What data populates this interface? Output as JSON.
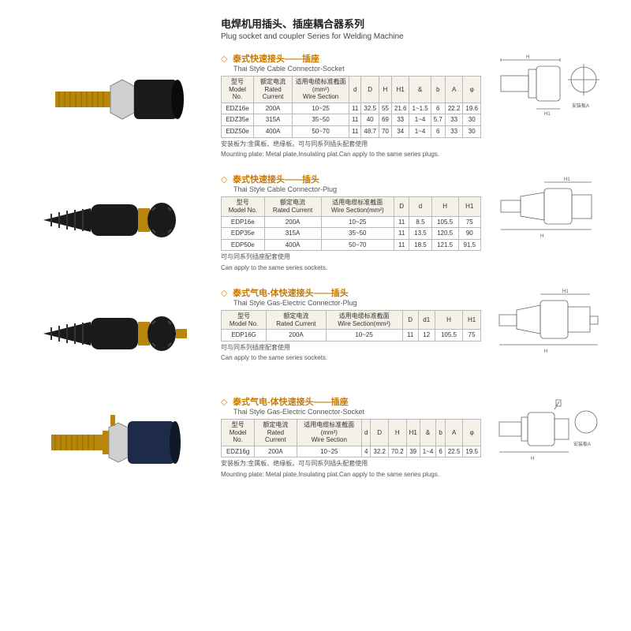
{
  "header": {
    "title_cn": "电焊机用插头、插座耦合器系列",
    "title_en": "Plug socket and coupler Series for Welding Machine"
  },
  "colors": {
    "accent": "#c97a00",
    "bullet": "#d88a00",
    "border": "#bbbbbb",
    "header_bg": "#f5f0e8",
    "text": "#333333",
    "brass": "#b8860b",
    "black": "#1a1a1a",
    "navy": "#1e2a4a",
    "steel": "#c8c8c8"
  },
  "sections": [
    {
      "id": "socket1",
      "title_cn": "泰式快速接头——插座",
      "title_en": "Thai Style Cable Connector-Socket",
      "columns": [
        {
          "cn": "型号",
          "en": "Model No."
        },
        {
          "cn": "额定电流",
          "en": "Rated Current"
        },
        {
          "cn": "适用电缆标准截面(mm²)",
          "en": "Wire Section"
        },
        {
          "en": "d"
        },
        {
          "en": "D"
        },
        {
          "en": "H"
        },
        {
          "en": "H1"
        },
        {
          "en": "&"
        },
        {
          "en": "b"
        },
        {
          "en": "A"
        },
        {
          "en": "φ"
        }
      ],
      "rows": [
        [
          "EDZ16e",
          "200A",
          "10~25",
          "11",
          "32.5",
          "55",
          "21.6",
          "1~1.5",
          "6",
          "22.2",
          "19.6"
        ],
        [
          "EDZ35e",
          "315A",
          "35~50",
          "11",
          "40",
          "69",
          "33",
          "1~4",
          "5.7",
          "33",
          "30"
        ],
        [
          "EDZ50e",
          "400A",
          "50~70",
          "11",
          "48.7",
          "70",
          "34",
          "1~4",
          "6",
          "33",
          "30"
        ]
      ],
      "note_cn": "安装板为:金属板、绝缘板。可与同系列插头配套使用",
      "note_en": "Mounting plate: Metal plate,Insulating plat.Can apply to the same series plugs."
    },
    {
      "id": "plug1",
      "title_cn": "泰式快速接头——插头",
      "title_en": "Thai Style Cable Connector-Plug",
      "columns": [
        {
          "cn": "型号",
          "en": "Model No."
        },
        {
          "cn": "额定电流",
          "en": "Rated Current"
        },
        {
          "cn": "适用电缆标准截面",
          "en": "Wire Section(mm²)"
        },
        {
          "en": "D"
        },
        {
          "en": "d"
        },
        {
          "en": "H"
        },
        {
          "en": "H1"
        }
      ],
      "rows": [
        [
          "EDP16e",
          "200A",
          "10~25",
          "11",
          "8.5",
          "105.5",
          "75"
        ],
        [
          "EDP35e",
          "315A",
          "35~50",
          "11",
          "13.5",
          "120.5",
          "90"
        ],
        [
          "EDP50e",
          "400A",
          "50~70",
          "11",
          "18.5",
          "121.5",
          "91.5"
        ]
      ],
      "note_cn": "可与同系列插座配套使用",
      "note_en": "Can apply to the same series sockets."
    },
    {
      "id": "plug2",
      "title_cn": "泰式气电-体快速接头——插头",
      "title_en": "Thai Style Gas-Electric Connector-Plug",
      "columns": [
        {
          "cn": "型号",
          "en": "Model No."
        },
        {
          "cn": "额定电流",
          "en": "Rated Current"
        },
        {
          "cn": "适用电缆标准截面",
          "en": "Wire Section(mm²)"
        },
        {
          "en": "D"
        },
        {
          "en": "d1"
        },
        {
          "en": "H"
        },
        {
          "en": "H1"
        }
      ],
      "rows": [
        [
          "EDP16G",
          "200A",
          "10~25",
          "11",
          "12",
          "105.5",
          "75"
        ]
      ],
      "note_cn": "可与同系列插座配套使用",
      "note_en": "Can apply to the same series sockets."
    },
    {
      "id": "socket2",
      "title_cn": "泰式气电-体快速接头——插座",
      "title_en": "Thai Style Gas-Electric Connector-Socket",
      "columns": [
        {
          "cn": "型号",
          "en": "Model No."
        },
        {
          "cn": "额定电流",
          "en": "Rated Current"
        },
        {
          "cn": "适用电缆标准截面(mm²)",
          "en": "Wire Section"
        },
        {
          "en": "d"
        },
        {
          "en": "D"
        },
        {
          "en": "H"
        },
        {
          "en": "H1"
        },
        {
          "en": "&"
        },
        {
          "en": "b"
        },
        {
          "en": "A"
        },
        {
          "en": "φ"
        }
      ],
      "rows": [
        [
          "EDZ16g",
          "200A",
          "10~25",
          "4",
          "32.2",
          "70.2",
          "39",
          "1~4",
          "6",
          "22.5",
          "19.5"
        ]
      ],
      "note_cn": "安装板为:金属板、绝缘板。可与同系列插头配套使用",
      "note_en": "Mounting plate: Metal plate,Insulating plat.Can apply to the same series plugs."
    }
  ],
  "labels": {
    "mounting_plate": "安装板A",
    "mounting_plate_en": "Mounting plate"
  }
}
